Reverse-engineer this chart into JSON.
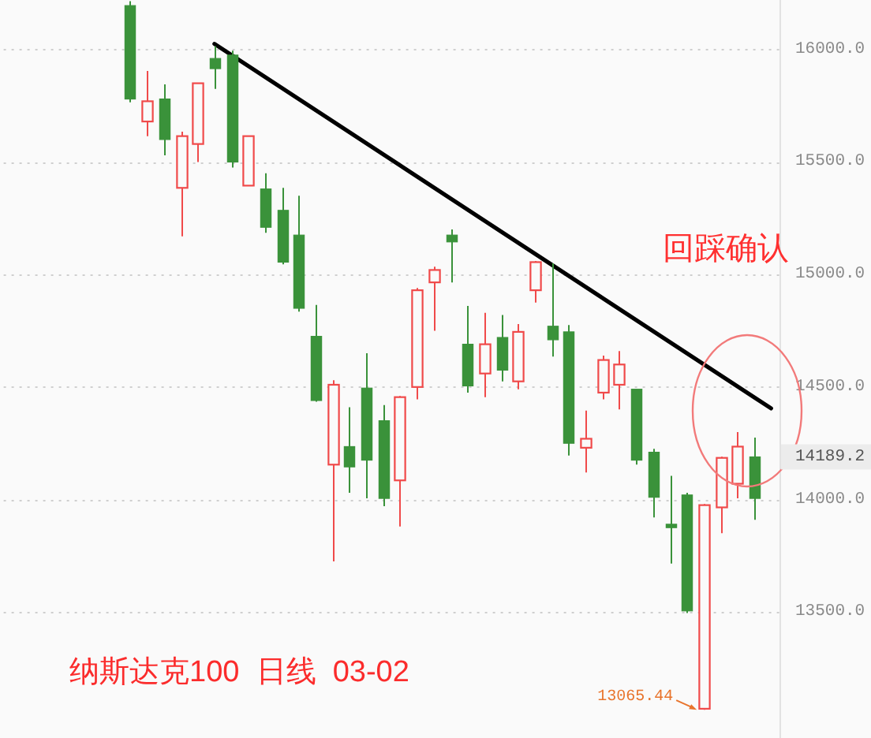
{
  "chart_data": {
    "type": "candlestick",
    "title": "纳斯达克100  日线  03-02",
    "categories": [
      null,
      null,
      null,
      null,
      null,
      null,
      null,
      null,
      null,
      null,
      null,
      null,
      null,
      null,
      null,
      null,
      null,
      null,
      null,
      null,
      null,
      null,
      null,
      null,
      null,
      null,
      null,
      null,
      null,
      null,
      null,
      null,
      null,
      null,
      null,
      null,
      null,
      null,
      null,
      null,
      null,
      null,
      null,
      null,
      null,
      null
    ],
    "ohlc": [
      null,
      null,
      null,
      null,
      null,
      null,
      null,
      [
        16195,
        16215,
        15765,
        15780
      ],
      [
        15680,
        15905,
        15615,
        15770
      ],
      [
        15780,
        15845,
        15530,
        15600
      ],
      [
        15385,
        15635,
        15170,
        15615
      ],
      [
        15580,
        15850,
        15500,
        15850
      ],
      [
        15960,
        16015,
        15825,
        15915
      ],
      [
        15975,
        15995,
        15475,
        15500
      ],
      [
        15395,
        15615,
        15395,
        15615
      ],
      [
        15380,
        15450,
        15185,
        15210
      ],
      [
        15285,
        15385,
        15045,
        15055
      ],
      [
        15175,
        15350,
        14835,
        14850
      ],
      [
        14725,
        14865,
        14435,
        14440
      ],
      [
        14155,
        14530,
        13725,
        14510
      ],
      [
        14235,
        14410,
        14030,
        14145
      ],
      [
        14495,
        14650,
        14005,
        14175
      ],
      [
        14350,
        14420,
        13970,
        14005
      ],
      [
        14085,
        14460,
        13880,
        14455
      ],
      [
        14500,
        14940,
        14445,
        14930
      ],
      [
        14965,
        15035,
        14750,
        15020
      ],
      [
        15175,
        15200,
        14965,
        15145
      ],
      [
        14690,
        14860,
        14475,
        14505
      ],
      [
        14560,
        14830,
        14455,
        14690
      ],
      [
        14720,
        14820,
        14525,
        14575
      ],
      [
        14525,
        14780,
        14490,
        14745
      ],
      [
        14930,
        15060,
        14875,
        15055
      ],
      [
        14770,
        15050,
        14635,
        14710
      ],
      [
        14745,
        14775,
        14195,
        14250
      ],
      [
        14230,
        14395,
        14120,
        14270
      ],
      [
        14475,
        14640,
        14445,
        14620
      ],
      [
        14510,
        14660,
        14400,
        14600
      ],
      [
        14490,
        14490,
        14155,
        14175
      ],
      [
        14210,
        14225,
        13920,
        14010
      ],
      [
        13890,
        14105,
        13715,
        13875
      ],
      [
        14020,
        14030,
        13495,
        13505
      ],
      [
        13070,
        13980,
        13065.44,
        13975
      ],
      [
        13965,
        14190,
        13850,
        14185
      ],
      [
        14070,
        14300,
        14005,
        14235
      ],
      [
        14189.2,
        14275,
        13910,
        14005
      ],
      null
    ],
    "colors": [
      null,
      null,
      null,
      null,
      null,
      null,
      null,
      "#3a923a",
      "#f04a4a",
      "#3a923a",
      "#f04a4a",
      "#f04a4a",
      "#3a923a",
      "#3a923a",
      "#f04a4a",
      "#3a923a",
      "#3a923a",
      "#3a923a",
      "#3a923a",
      "#f04a4a",
      "#3a923a",
      "#3a923a",
      "#3a923a",
      "#f04a4a",
      "#f04a4a",
      "#f04a4a",
      "#3a923a",
      "#3a923a",
      "#f04a4a",
      "#3a923a",
      "#f04a4a",
      "#f04a4a",
      "#3a923a",
      "#3a923a",
      "#f04a4a",
      "#f04a4a",
      "#f04a4a",
      "#3a923a",
      "#3a923a",
      "#3a923a",
      "#3a923a",
      "#f04a4a",
      "#f04a4a",
      "#f04a4a",
      "#3a923a",
      null
    ],
    "series": [
      {
        "type": "line",
        "color": "#000000",
        "values": [
          null,
          null,
          null,
          null,
          null,
          null,
          null,
          null,
          null,
          null,
          null,
          null,
          16025,
          null,
          null,
          null,
          null,
          null,
          null,
          null,
          null,
          null,
          null,
          null,
          null,
          null,
          null,
          null,
          null,
          null,
          null,
          null,
          null,
          null,
          null,
          null,
          null,
          null,
          null,
          null,
          null,
          null,
          null,
          null,
          null,
          14405
        ]
      }
    ],
    "ylim": [
      12940,
      16220
    ],
    "yticks": [
      {
        "value": 13500,
        "label": "13500.0"
      },
      {
        "value": 14000,
        "label": "14000.0"
      },
      {
        "value": 14500,
        "label": "14500.0"
      },
      {
        "value": 15000,
        "label": "15000.0"
      },
      {
        "value": 15500,
        "label": "15500.0"
      },
      {
        "value": 16000,
        "label": "16000.0"
      }
    ],
    "grid": "y",
    "tick_labels": "y",
    "annotations": [
      "回踩确认",
      "13065.44",
      "14189.2"
    ]
  }
}
